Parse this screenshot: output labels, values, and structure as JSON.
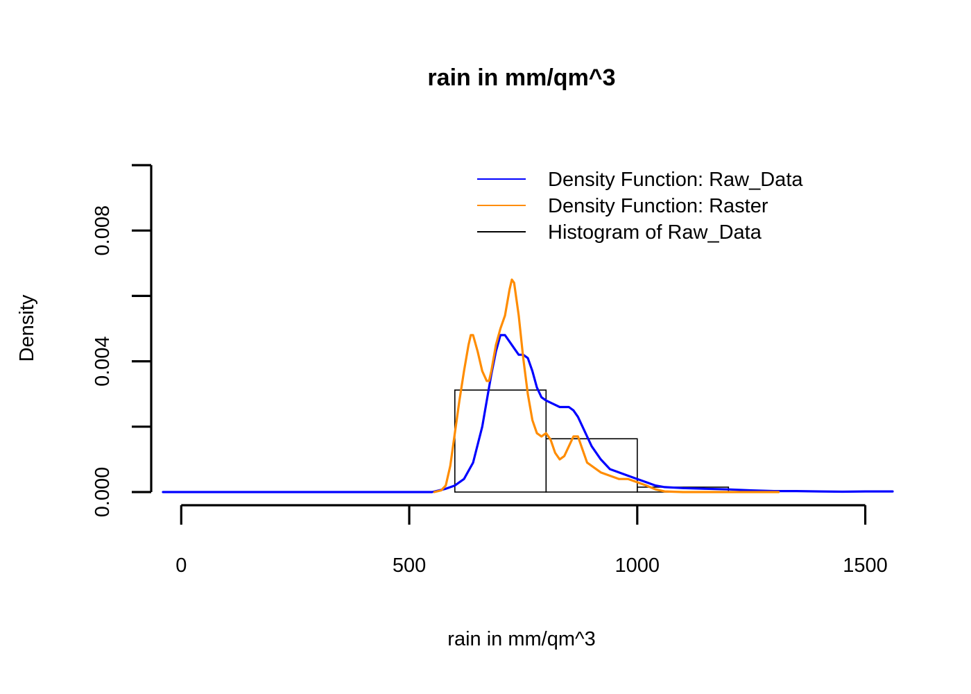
{
  "chart_data": {
    "type": "histogram+density",
    "title": "rain in mm/qm^3",
    "xlabel": "rain in mm/qm^3",
    "ylabel": "Density",
    "xlim": [
      -40,
      1560
    ],
    "ylim": [
      0,
      0.01
    ],
    "x_ticks": [
      0,
      500,
      1000,
      1500
    ],
    "x_tick_labels": [
      "0",
      "500",
      "1000",
      "1500"
    ],
    "y_ticks": [
      0,
      0.002,
      0.004,
      0.006,
      0.008,
      0.01
    ],
    "y_tick_labels": [
      "0.000",
      "",
      "0.004",
      "",
      "0.008",
      ""
    ],
    "grid": false,
    "legend_position": "top-right",
    "legend": [
      {
        "name": "Density Function: Raw_Data",
        "color": "#0000ff"
      },
      {
        "name": "Density Function: Raster",
        "color": "#ff8c00"
      },
      {
        "name": "Histogram of Raw_Data",
        "color": "#000000"
      }
    ],
    "histogram": {
      "name": "Histogram of Raw_Data",
      "color": "#000000",
      "bins": [
        {
          "start": 600,
          "end": 800,
          "density": 0.00312
        },
        {
          "start": 800,
          "end": 1000,
          "density": 0.00163
        },
        {
          "start": 1000,
          "end": 1200,
          "density": 0.00015
        }
      ]
    },
    "series": [
      {
        "name": "Density Function: Raw_Data",
        "color": "#0000ff",
        "x": [
          -40,
          400,
          550,
          580,
          600,
          620,
          640,
          660,
          680,
          690,
          700,
          710,
          720,
          730,
          740,
          750,
          760,
          770,
          780,
          790,
          800,
          815,
          830,
          840,
          850,
          860,
          870,
          880,
          900,
          920,
          940,
          960,
          980,
          1000,
          1020,
          1040,
          1060,
          1100,
          1150,
          1200,
          1250,
          1300,
          1350,
          1400,
          1450,
          1500,
          1560
        ],
        "y": [
          0,
          0,
          0,
          0.0001,
          0.0002,
          0.0004,
          0.0009,
          0.002,
          0.0036,
          0.0043,
          0.0048,
          0.0048,
          0.0046,
          0.0044,
          0.0042,
          0.0042,
          0.0041,
          0.0037,
          0.0032,
          0.0029,
          0.0028,
          0.0027,
          0.0026,
          0.0026,
          0.0026,
          0.0025,
          0.0023,
          0.002,
          0.0014,
          0.001,
          0.0007,
          0.0006,
          0.0005,
          0.0004,
          0.0003,
          0.0002,
          0.00015,
          0.00012,
          0.0001,
          8e-05,
          5e-05,
          3e-05,
          3e-05,
          2e-05,
          1e-05,
          2e-05,
          2e-05
        ]
      },
      {
        "name": "Density Function: Raster",
        "color": "#ff8c00",
        "x": [
          555,
          570,
          580,
          590,
          600,
          610,
          620,
          630,
          635,
          640,
          650,
          660,
          670,
          675,
          680,
          690,
          700,
          710,
          720,
          725,
          730,
          740,
          750,
          760,
          770,
          780,
          790,
          800,
          810,
          820,
          830,
          840,
          850,
          860,
          870,
          880,
          890,
          900,
          920,
          940,
          960,
          980,
          1000,
          1020,
          1040,
          1060,
          1100,
          1150,
          1200,
          1250,
          1310
        ],
        "y": [
          0,
          5e-05,
          0.0002,
          0.0008,
          0.0018,
          0.0028,
          0.0037,
          0.0045,
          0.0048,
          0.0048,
          0.0043,
          0.0037,
          0.0034,
          0.0034,
          0.0037,
          0.0045,
          0.005,
          0.0054,
          0.0062,
          0.0065,
          0.0064,
          0.0054,
          0.0041,
          0.003,
          0.0022,
          0.0018,
          0.0017,
          0.0018,
          0.0016,
          0.0012,
          0.001,
          0.0011,
          0.0014,
          0.0017,
          0.0017,
          0.0013,
          0.0009,
          0.0008,
          0.0006,
          0.0005,
          0.0004,
          0.0004,
          0.0003,
          0.0002,
          8e-05,
          2e-05,
          0,
          0,
          0,
          0,
          0
        ]
      }
    ]
  }
}
